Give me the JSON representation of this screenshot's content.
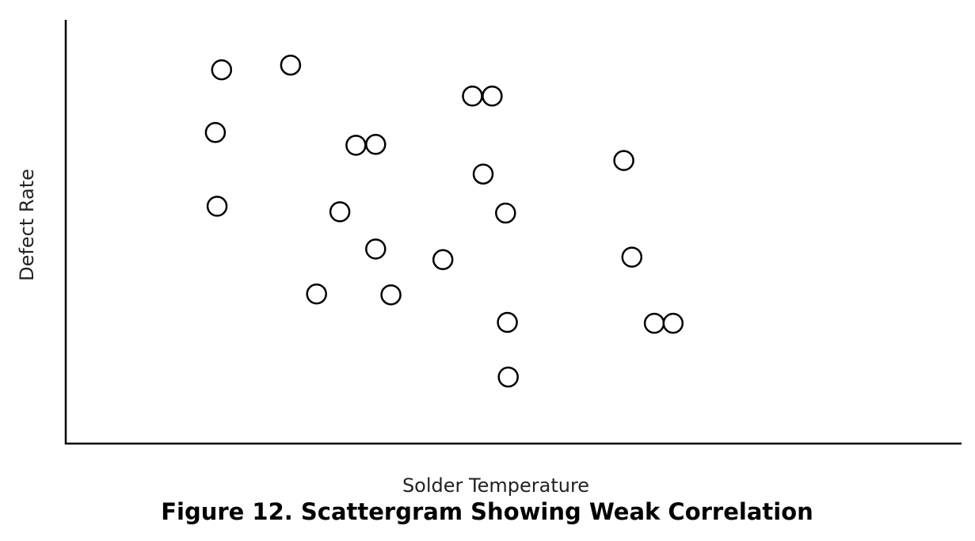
{
  "chart_data": {
    "type": "scatter",
    "title": "",
    "xlabel": "Solder Temperature",
    "ylabel": "Defect Rate",
    "xlim": [
      0,
      100
    ],
    "ylim": [
      0,
      100
    ],
    "grid": false,
    "x_ticks_shown": false,
    "y_ticks_shown": false,
    "marker": "open-circle",
    "colors": {
      "marker_stroke": "#000000",
      "marker_fill": "#ffffff",
      "axis": "#000000"
    },
    "series": [
      {
        "points": [
          [
            17.4,
            88.2
          ],
          [
            25.1,
            89.3
          ],
          [
            16.7,
            73.4
          ],
          [
            16.9,
            56.0
          ],
          [
            32.4,
            70.4
          ],
          [
            34.6,
            70.6
          ],
          [
            30.6,
            54.7
          ],
          [
            34.6,
            45.9
          ],
          [
            28.0,
            35.3
          ],
          [
            36.3,
            35.1
          ],
          [
            42.1,
            43.4
          ],
          [
            45.4,
            82.0
          ],
          [
            47.6,
            82.0
          ],
          [
            46.6,
            63.6
          ],
          [
            49.1,
            54.4
          ],
          [
            49.3,
            28.6
          ],
          [
            49.4,
            15.7
          ],
          [
            62.3,
            66.8
          ],
          [
            63.2,
            44.0
          ],
          [
            65.7,
            28.4
          ],
          [
            67.8,
            28.4
          ]
        ]
      }
    ]
  },
  "caption": "Figure 12.  Scattergram Showing Weak Correlation"
}
